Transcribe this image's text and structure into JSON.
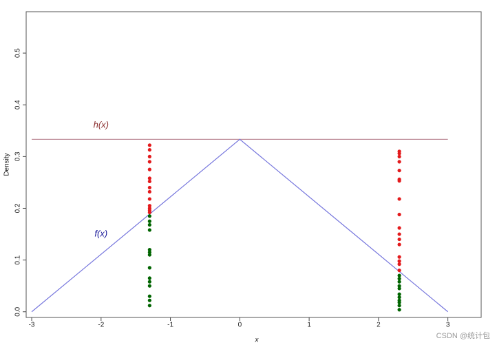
{
  "chart_data": {
    "type": "scatter",
    "x_label": "x",
    "y_label": "Density",
    "xlim": [
      -3.08,
      3.48
    ],
    "ylim": [
      -0.011,
      0.58
    ],
    "xticks": [
      -3,
      -2,
      -1,
      0,
      1,
      2,
      3
    ],
    "yticks": [
      0.0,
      0.1,
      0.2,
      0.3,
      0.4,
      0.5
    ],
    "yticks_labels": [
      "0.0",
      "0.1",
      "0.2",
      "0.3",
      "0.4",
      "0.5"
    ],
    "annotations": [
      {
        "text": "h(x)",
        "x": -2,
        "y": 0.36,
        "color": "#8b2e2e"
      },
      {
        "text": "f(x)",
        "x": -2,
        "y": 0.15,
        "color": "#1a1a9a"
      }
    ],
    "series": [
      {
        "name": "h(x)",
        "kind": "line",
        "color": "#c0909c",
        "x": [
          -3,
          3
        ],
        "values": [
          0.3333,
          0.3333
        ]
      },
      {
        "name": "f(x)",
        "kind": "line",
        "color": "#7777dd",
        "x": [
          -3,
          0,
          3
        ],
        "values": [
          0,
          0.3333,
          0
        ]
      },
      {
        "kind": "points",
        "color": "#e31a1c",
        "x": [
          -1.3,
          -1.3,
          -1.3,
          -1.3,
          -1.3,
          -1.3,
          -1.3,
          -1.3,
          -1.3,
          -1.3,
          -1.3,
          -1.3,
          -1.3,
          -1.3,
          2.3,
          2.3,
          2.3,
          2.3,
          2.3,
          2.3,
          2.3,
          2.3,
          2.3,
          2.3,
          2.3,
          2.3,
          2.3,
          2.3,
          2.3,
          2.3,
          2.3
        ],
        "values": [
          0.322,
          0.313,
          0.3,
          0.29,
          0.275,
          0.258,
          0.252,
          0.24,
          0.232,
          0.218,
          0.205,
          0.2,
          0.196,
          0.192,
          0.31,
          0.306,
          0.3,
          0.29,
          0.273,
          0.256,
          0.253,
          0.218,
          0.188,
          0.162,
          0.15,
          0.14,
          0.13,
          0.106,
          0.098,
          0.092,
          0.08
        ]
      },
      {
        "kind": "points",
        "color": "#006400",
        "x": [
          -1.3,
          -1.3,
          -1.3,
          -1.3,
          -1.3,
          -1.3,
          -1.3,
          -1.3,
          -1.3,
          -1.3,
          -1.3,
          -1.3,
          -1.3,
          -1.3,
          2.3,
          2.3,
          2.3,
          2.3,
          2.3,
          2.3,
          2.3,
          2.3,
          2.3,
          2.3,
          2.3
        ],
        "values": [
          0.185,
          0.175,
          0.168,
          0.158,
          0.12,
          0.115,
          0.11,
          0.085,
          0.065,
          0.058,
          0.05,
          0.03,
          0.022,
          0.012,
          0.07,
          0.064,
          0.058,
          0.05,
          0.045,
          0.034,
          0.028,
          0.022,
          0.018,
          0.012,
          0.004
        ]
      }
    ]
  },
  "watermark": "CSDN @统计包"
}
